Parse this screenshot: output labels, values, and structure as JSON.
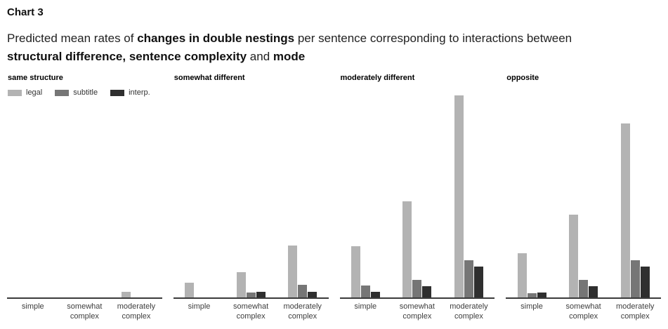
{
  "chart_data": {
    "type": "bar",
    "title": "Chart 3",
    "subtitle_plain": "Predicted mean rates of changes in double nestings per sentence corresponding to interactions between structural difference, sentence complexity and mode",
    "subtitle_segments": [
      {
        "text": "Predicted mean rates of ",
        "bold": false
      },
      {
        "text": "changes in double nestings",
        "bold": true
      },
      {
        "text": " per sentence corresponding to interactions between ",
        "bold": false
      },
      {
        "text": "structural difference, sentence complexity",
        "bold": true
      },
      {
        "text": " and ",
        "bold": false
      },
      {
        "text": "mode",
        "bold": true
      }
    ],
    "legend_position": "top-left of first facet",
    "series": [
      {
        "name": "legal",
        "color": "#b3b3b3"
      },
      {
        "name": "subtitle",
        "color": "#767676"
      },
      {
        "name": "interp.",
        "color": "#2f2f2f"
      }
    ],
    "categories": [
      "simple",
      "somewhat\ncomplex",
      "moderately\ncomplex"
    ],
    "y_axis": {
      "visible": false,
      "note": "no y-axis scale shown in image; values are estimated relative bar heights in pixels (tallest bar = 288)"
    },
    "axis_color": "#3a3a3a",
    "facets": [
      {
        "label": "same structure",
        "values": [
          [
            0,
            0,
            0
          ],
          [
            0,
            0,
            0
          ],
          [
            8,
            0,
            0
          ]
        ]
      },
      {
        "label": "somewhat different",
        "values": [
          [
            21,
            0,
            0
          ],
          [
            36,
            7,
            8
          ],
          [
            74,
            18,
            8
          ]
        ]
      },
      {
        "label": "moderately different",
        "values": [
          [
            73,
            17,
            8
          ],
          [
            137,
            25,
            16
          ],
          [
            288,
            53,
            44
          ]
        ]
      },
      {
        "label": "opposite",
        "values": [
          [
            63,
            6,
            7
          ],
          [
            118,
            25,
            16
          ],
          [
            248,
            53,
            44
          ]
        ]
      }
    ]
  }
}
